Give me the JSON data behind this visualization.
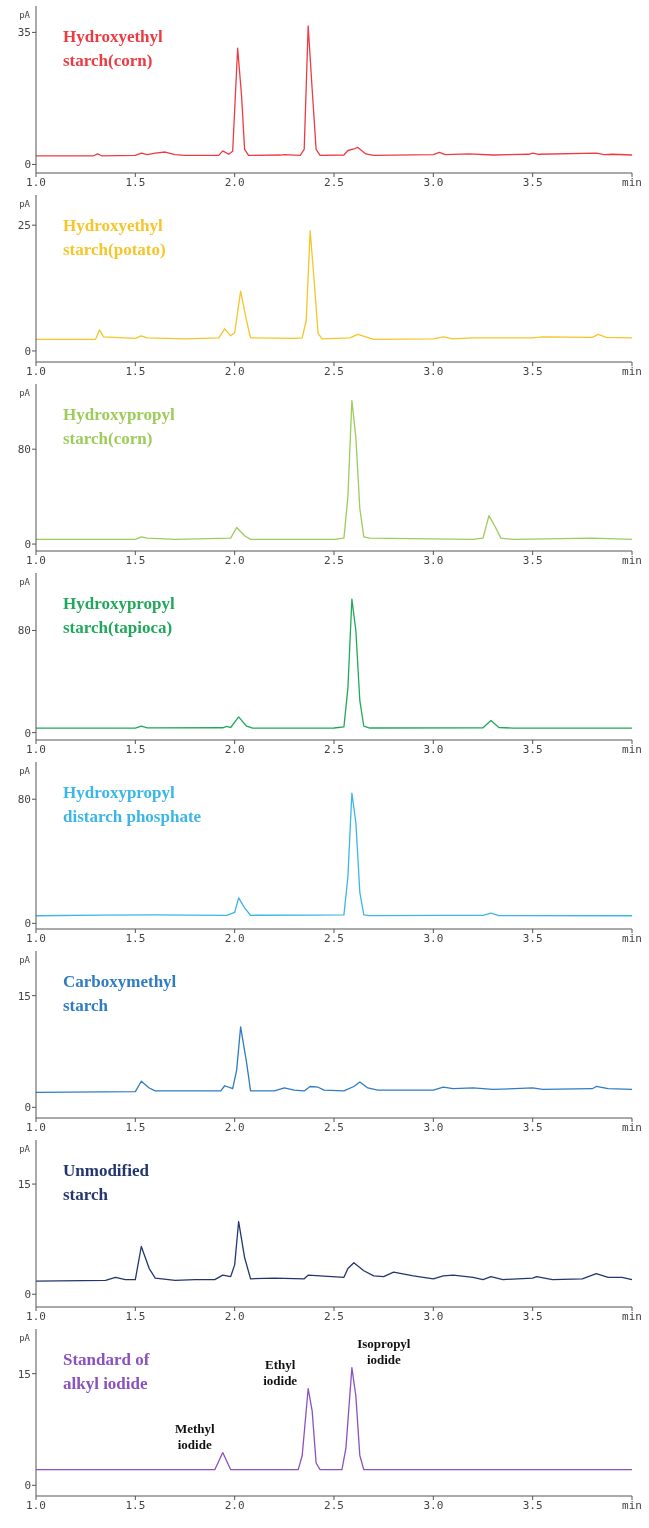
{
  "chart_data": [
    {
      "type": "line",
      "title": "Hydroxyethyl\nstarch(corn)",
      "ylabel": "pA",
      "xlim": [
        1,
        4
      ],
      "xticks": [
        {
          "value": 1,
          "label": "1.0"
        },
        1.5,
        {
          "value": 2,
          "label": "2.0"
        },
        2.5,
        {
          "value": 3,
          "label": "3.0"
        },
        3.5,
        {
          "value": 4,
          "label": "min"
        }
      ],
      "ylim": [
        -2,
        42
      ],
      "yticks": [
        0,
        35
      ],
      "series": [
        {
          "color": "#ee3b42",
          "x": [
            1.0,
            1.29,
            1.31,
            1.33,
            1.5,
            1.53,
            1.56,
            1.6,
            1.65,
            1.7,
            1.75,
            1.92,
            1.94,
            1.97,
            1.99,
            2.015,
            2.035,
            2.05,
            2.07,
            2.23,
            2.25,
            2.33,
            2.35,
            2.37,
            2.39,
            2.41,
            2.43,
            2.55,
            2.57,
            2.6,
            2.62,
            2.66,
            2.7,
            3.0,
            3.03,
            3.06,
            3.18,
            3.3,
            3.48,
            3.5,
            3.53,
            3.82,
            3.86,
            3.9,
            4.0
          ],
          "values": [
            2.3,
            2.3,
            2.8,
            2.3,
            2.4,
            3.0,
            2.6,
            3.0,
            3.3,
            2.6,
            2.4,
            2.4,
            3.6,
            2.7,
            3.5,
            30.8,
            18,
            4,
            2.4,
            2.5,
            2.6,
            2.4,
            4,
            36.7,
            20,
            4,
            2.4,
            2.5,
            3.7,
            4.1,
            4.5,
            2.8,
            2.4,
            2.6,
            3.2,
            2.6,
            2.8,
            2.5,
            2.7,
            3.0,
            2.7,
            3.0,
            2.6,
            2.7,
            2.5
          ]
        }
      ]
    },
    {
      "type": "line",
      "title": "Hydroxyethyl\nstarch(potato)",
      "ylabel": "pA",
      "xlim": [
        1,
        4
      ],
      "xticks": [
        {
          "value": 1,
          "label": "1.0"
        },
        1.5,
        {
          "value": 2,
          "label": "2.0"
        },
        2.5,
        {
          "value": 3,
          "label": "3.0"
        },
        3.5,
        {
          "value": 4,
          "label": "min"
        }
      ],
      "ylim": [
        -2,
        31
      ],
      "yticks": [
        0,
        25
      ],
      "series": [
        {
          "color": "#f5c52a",
          "x": [
            1.0,
            1.3,
            1.32,
            1.34,
            1.5,
            1.53,
            1.56,
            1.75,
            1.92,
            1.95,
            1.98,
            2.0,
            2.03,
            2.06,
            2.08,
            2.3,
            2.34,
            2.36,
            2.38,
            2.4,
            2.42,
            2.44,
            2.58,
            2.62,
            2.66,
            2.7,
            3.0,
            3.05,
            3.1,
            3.2,
            3.5,
            3.55,
            3.8,
            3.83,
            3.87,
            4.0
          ],
          "values": [
            2.3,
            2.3,
            4.2,
            2.8,
            2.5,
            3.0,
            2.6,
            2.4,
            2.6,
            4.4,
            3.0,
            3.6,
            11.9,
            6,
            2.6,
            2.5,
            2.6,
            6,
            23.9,
            14,
            3.5,
            2.4,
            2.6,
            3.3,
            2.8,
            2.3,
            2.4,
            2.8,
            2.4,
            2.6,
            2.6,
            2.8,
            2.7,
            3.3,
            2.7,
            2.6
          ]
        }
      ]
    },
    {
      "type": "line",
      "title": "Hydroxypropyl\nstarch(corn)",
      "ylabel": "pA",
      "xlim": [
        1,
        4
      ],
      "xticks": [
        {
          "value": 1,
          "label": "1.0"
        },
        1.5,
        {
          "value": 2,
          "label": "2.0"
        },
        2.5,
        {
          "value": 3,
          "label": "3.0"
        },
        3.5,
        {
          "value": 4,
          "label": "min"
        }
      ],
      "ylim": [
        -5,
        135
      ],
      "yticks": [
        0,
        80
      ],
      "series": [
        {
          "color": "#9dcc5a",
          "x": [
            1.0,
            1.5,
            1.53,
            1.56,
            1.7,
            1.98,
            2.01,
            2.05,
            2.08,
            2.5,
            2.55,
            2.57,
            2.59,
            2.61,
            2.63,
            2.65,
            2.68,
            3.2,
            3.25,
            3.28,
            3.31,
            3.34,
            3.4,
            3.8,
            4.0
          ],
          "values": [
            4,
            4,
            6,
            5,
            4,
            5,
            14,
            7,
            4,
            4,
            5,
            40,
            121,
            90,
            30,
            6,
            5,
            4,
            5,
            24,
            15,
            5,
            4,
            5,
            4
          ]
        }
      ]
    },
    {
      "type": "line",
      "title": "Hydroxypropyl\nstarch(tapioca)",
      "ylabel": "pA",
      "xlim": [
        1,
        4
      ],
      "xticks": [
        {
          "value": 1,
          "label": "1.0"
        },
        1.5,
        {
          "value": 2,
          "label": "2.0"
        },
        2.5,
        {
          "value": 3,
          "label": "3.0"
        },
        3.5,
        {
          "value": 4,
          "label": "min"
        }
      ],
      "ylim": [
        -5,
        125
      ],
      "yticks": [
        0,
        80
      ],
      "series": [
        {
          "color": "#22a85c",
          "x": [
            1.0,
            1.5,
            1.53,
            1.56,
            1.94,
            1.96,
            1.98,
            2.02,
            2.06,
            2.09,
            2.5,
            2.55,
            2.57,
            2.59,
            2.61,
            2.63,
            2.65,
            2.68,
            3.25,
            3.29,
            3.33,
            3.4,
            4.0
          ],
          "values": [
            3.5,
            3.5,
            5,
            3.7,
            3.8,
            4.8,
            4,
            12.3,
            5,
            3.5,
            3.6,
            4.5,
            35,
            104.5,
            80,
            25,
            5,
            3.6,
            3.8,
            9.5,
            4,
            3.5,
            3.5
          ]
        }
      ]
    },
    {
      "type": "line",
      "title": "Hydroxypropyl\ndistarch phosphate",
      "ylabel": "pA",
      "xlim": [
        1,
        4
      ],
      "xticks": [
        {
          "value": 1,
          "label": "1.0"
        },
        1.5,
        {
          "value": 2,
          "label": "2.0"
        },
        2.5,
        {
          "value": 3,
          "label": "3.0"
        },
        3.5,
        {
          "value": 4,
          "label": "min"
        }
      ],
      "ylim": [
        -3,
        104
      ],
      "yticks": [
        0,
        80
      ],
      "series": [
        {
          "color": "#3cb6e6",
          "x": [
            1.0,
            1.33,
            1.6,
            1.77,
            1.96,
            2.0,
            2.02,
            2.05,
            2.08,
            2.4,
            2.55,
            2.57,
            2.59,
            2.61,
            2.63,
            2.65,
            2.68,
            3.05,
            3.25,
            3.29,
            3.33,
            4.0
          ],
          "values": [
            4.9,
            5.3,
            5.4,
            5.3,
            5.2,
            7,
            16.4,
            10,
            5.2,
            5.3,
            5.5,
            30,
            84,
            65,
            20,
            5.5,
            5,
            5.2,
            5.1,
            6.6,
            5,
            4.9
          ]
        }
      ]
    },
    {
      "type": "line",
      "title": "Carboxymethyl\nstarch",
      "ylabel": "pA",
      "xlim": [
        1,
        4
      ],
      "xticks": [
        {
          "value": 1,
          "label": "1.0"
        },
        1.5,
        {
          "value": 2,
          "label": "2.0"
        },
        2.5,
        {
          "value": 3,
          "label": "3.0"
        },
        3.5,
        {
          "value": 4,
          "label": "min"
        }
      ],
      "ylim": [
        -1.3,
        21
      ],
      "yticks": [
        0,
        15
      ],
      "series": [
        {
          "color": "#2f7bc4",
          "x": [
            1.0,
            1.5,
            1.53,
            1.57,
            1.6,
            1.93,
            1.95,
            1.99,
            2.01,
            2.03,
            2.06,
            2.08,
            2.2,
            2.25,
            2.3,
            2.35,
            2.38,
            2.42,
            2.45,
            2.55,
            2.6,
            2.63,
            2.67,
            2.72,
            3.0,
            3.05,
            3.1,
            3.2,
            3.3,
            3.5,
            3.55,
            3.8,
            3.82,
            3.88,
            4.0
          ],
          "values": [
            2.0,
            2.1,
            3.5,
            2.6,
            2.2,
            2.2,
            2.9,
            2.5,
            5,
            10.8,
            6,
            2.2,
            2.2,
            2.6,
            2.3,
            2.2,
            2.8,
            2.7,
            2.3,
            2.2,
            2.8,
            3.4,
            2.6,
            2.3,
            2.3,
            2.7,
            2.5,
            2.6,
            2.4,
            2.6,
            2.4,
            2.5,
            2.8,
            2.5,
            2.4
          ]
        }
      ]
    },
    {
      "type": "line",
      "title": "Unmodified\nstarch",
      "ylabel": "pA",
      "xlim": [
        1,
        4
      ],
      "xticks": [
        {
          "value": 1,
          "label": "1.0"
        },
        1.5,
        {
          "value": 2,
          "label": "2.0"
        },
        2.5,
        {
          "value": 3,
          "label": "3.0"
        },
        3.5,
        {
          "value": 4,
          "label": "min"
        }
      ],
      "ylim": [
        -1.6,
        21
      ],
      "yticks": [
        0,
        15
      ],
      "series": [
        {
          "color": "#23366f",
          "x": [
            1.0,
            1.35,
            1.4,
            1.45,
            1.5,
            1.53,
            1.57,
            1.6,
            1.7,
            1.8,
            1.9,
            1.94,
            1.98,
            2.0,
            2.02,
            2.05,
            2.08,
            2.2,
            2.35,
            2.37,
            2.55,
            2.57,
            2.6,
            2.65,
            2.7,
            2.75,
            2.8,
            2.9,
            3.0,
            3.05,
            3.1,
            3.2,
            3.25,
            3.29,
            3.35,
            3.5,
            3.52,
            3.6,
            3.75,
            3.82,
            3.88,
            3.95,
            4.0
          ],
          "values": [
            1.8,
            1.9,
            2.3,
            2.0,
            2.0,
            6.5,
            3.5,
            2.2,
            1.9,
            2.0,
            2.0,
            2.6,
            2.4,
            4,
            9.9,
            5,
            2.1,
            2.2,
            2.1,
            2.6,
            2.3,
            3.5,
            4.3,
            3.2,
            2.5,
            2.4,
            3.0,
            2.5,
            2.1,
            2.5,
            2.6,
            2.3,
            2.0,
            2.4,
            2.0,
            2.2,
            2.4,
            2.0,
            2.1,
            2.8,
            2.3,
            2.3,
            2.0
          ]
        }
      ]
    },
    {
      "type": "line",
      "title": "Standard of\nalkyl iodide",
      "ylabel": "pA",
      "xlim": [
        1,
        4
      ],
      "xticks": [
        {
          "value": 1,
          "label": "1.0"
        },
        1.5,
        {
          "value": 2,
          "label": "2.0"
        },
        2.5,
        {
          "value": 3,
          "label": "3.0"
        },
        3.5,
        {
          "value": 4,
          "label": "min"
        }
      ],
      "ylim": [
        -1.3,
        21
      ],
      "yticks": [
        0,
        15
      ],
      "annotations": [
        {
          "text": "Methyl\niodide",
          "x": 1.94,
          "y": 4.4
        },
        {
          "text": "Ethyl\niodide",
          "x": 2.37,
          "y": 13
        },
        {
          "text": "Isopropyl\niodide",
          "x": 2.59,
          "y": 15.8
        }
      ],
      "series": [
        {
          "color": "#8b52bf",
          "x": [
            1.0,
            1.9,
            1.94,
            1.98,
            2.32,
            2.34,
            2.37,
            2.39,
            2.41,
            2.43,
            2.54,
            2.56,
            2.59,
            2.61,
            2.63,
            2.65,
            4.0
          ],
          "values": [
            2.1,
            2.1,
            4.4,
            2.1,
            2.1,
            4,
            13,
            10,
            3,
            2.1,
            2.1,
            5,
            15.8,
            12,
            4,
            2.1,
            2.1
          ]
        }
      ]
    }
  ]
}
